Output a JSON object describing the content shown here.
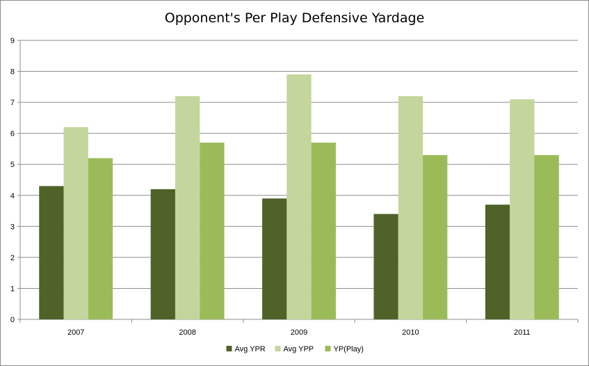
{
  "chart_data": {
    "type": "bar",
    "title": "Opponent's Per Play Defensive Yardage",
    "xlabel": "",
    "ylabel": "",
    "categories": [
      "2007",
      "2008",
      "2009",
      "2010",
      "2011"
    ],
    "series": [
      {
        "name": "Avg YPR",
        "values": [
          4.3,
          4.2,
          3.9,
          3.4,
          3.7
        ],
        "color": "#4f6228"
      },
      {
        "name": "Avg YPP",
        "values": [
          6.2,
          7.2,
          7.9,
          7.2,
          7.1
        ],
        "color": "#c3d69b"
      },
      {
        "name": "YP(Play)",
        "values": [
          5.2,
          5.7,
          5.7,
          5.3,
          5.3
        ],
        "color": "#9bbb59"
      }
    ],
    "ylim": [
      0,
      9
    ],
    "yticks": [
      0,
      1,
      2,
      3,
      4,
      5,
      6,
      7,
      8,
      9
    ],
    "grid": true,
    "legend_position": "bottom"
  }
}
